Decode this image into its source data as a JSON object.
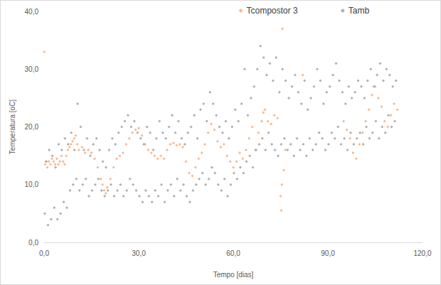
{
  "chart_data": {
    "type": "scatter",
    "x_label": "Tempo [dias]",
    "y_label": "Temperatura [oC]",
    "xlim": [
      0,
      120
    ],
    "ylim": [
      0,
      40
    ],
    "xticks": [
      {
        "value": 0,
        "label": "0,0"
      },
      {
        "value": 30,
        "label": "30,0"
      },
      {
        "value": 60,
        "label": "60,0"
      },
      {
        "value": 90,
        "label": "90,0"
      },
      {
        "value": 120,
        "label": "120,0"
      }
    ],
    "yticks": [
      {
        "value": 0,
        "label": "0,0"
      },
      {
        "value": 10,
        "label": "10,0"
      },
      {
        "value": 20,
        "label": "20,0"
      },
      {
        "value": 30,
        "label": "30,0"
      },
      {
        "value": 40,
        "label": "40,0"
      }
    ],
    "grid": false,
    "legend": "top",
    "marker": "diamond",
    "series": [
      {
        "name": "Tcompostor 3",
        "color": "#f4b183",
        "x": [
          0,
          0.3,
          0.7,
          1,
          1.5,
          2,
          2.5,
          3,
          3.5,
          4,
          4.5,
          5,
          5.5,
          6,
          6.5,
          7,
          7.5,
          8,
          8.5,
          9,
          9.5,
          10,
          10.5,
          11,
          12,
          13,
          14,
          15,
          16,
          17,
          18,
          18.5,
          19,
          19.5,
          20,
          21,
          22,
          23,
          24,
          25,
          26,
          27,
          28,
          29,
          30,
          31,
          32,
          33,
          34,
          35,
          36,
          37,
          38,
          39,
          40,
          41,
          42,
          43,
          44,
          45,
          46,
          47,
          48,
          49,
          50,
          51,
          52,
          53,
          54,
          55,
          56,
          57,
          58,
          59,
          60,
          61,
          62,
          63,
          64,
          65,
          66,
          67,
          68,
          69,
          69.5,
          70,
          71,
          72,
          73,
          74,
          75,
          75.2,
          75.4,
          75.6,
          76,
          76.5,
          82,
          95,
          96,
          97,
          98,
          99,
          100,
          101,
          102,
          103,
          104,
          105,
          106,
          107,
          108,
          109,
          110,
          111,
          112
        ],
        "values": [
          33,
          13.5,
          14,
          13,
          14,
          13.5,
          14.5,
          14,
          13.5,
          14.5,
          13.5,
          14,
          15,
          14,
          13.5,
          15,
          16,
          16.5,
          17,
          17.5,
          18,
          18.5,
          17,
          16,
          16.5,
          15.5,
          16,
          15.5,
          14.5,
          13,
          11,
          10,
          9,
          8.5,
          9.5,
          11,
          13,
          14.5,
          15,
          15.5,
          17,
          18,
          19,
          19.5,
          19.8,
          18.5,
          17,
          16,
          15.5,
          15,
          14.5,
          15,
          14.5,
          16,
          17,
          17.2,
          16.8,
          17,
          16.5,
          14,
          12,
          11.5,
          13,
          14.5,
          15.5,
          17,
          19,
          20.5,
          19.5,
          17.5,
          16.5,
          17,
          15,
          14,
          13,
          14,
          15.5,
          14.5,
          16,
          18,
          20,
          16,
          19,
          21,
          22.5,
          23,
          21,
          20.5,
          22,
          21.5,
          8,
          5.5,
          10,
          37,
          12.5,
          16,
          29,
          21,
          19.5,
          18,
          15.5,
          14.5,
          17,
          19,
          21,
          23,
          25.5,
          27,
          25,
          23.5,
          21,
          20,
          22,
          24,
          23
        ]
      },
      {
        "name": "Tamb",
        "color": "#a5a5a5",
        "x": [
          0.2,
          0.6,
          1.2,
          1.6,
          2.2,
          2.6,
          3.2,
          3.6,
          4.2,
          4.6,
          5.2,
          5.6,
          6.2,
          6.6,
          7.2,
          7.6,
          8.2,
          8.6,
          9.2,
          9.6,
          10.2,
          10.6,
          11.2,
          11.6,
          12.2,
          12.6,
          13.2,
          13.6,
          14.2,
          14.6,
          15.2,
          15.6,
          16.2,
          16.6,
          17.2,
          17.6,
          18.2,
          18.6,
          19.2,
          19.6,
          20.2,
          20.6,
          21.2,
          21.6,
          22.2,
          22.6,
          23.2,
          23.6,
          24.2,
          24.6,
          25.2,
          25.6,
          26.2,
          26.6,
          27.2,
          27.6,
          28.2,
          28.6,
          29.2,
          29.6,
          30.2,
          30.6,
          31.2,
          31.6,
          32.2,
          32.6,
          33.2,
          33.6,
          34.2,
          34.6,
          35.2,
          35.6,
          36.2,
          36.6,
          37.2,
          37.6,
          38.2,
          38.6,
          39.2,
          39.6,
          40.2,
          40.6,
          41.2,
          41.6,
          42.2,
          42.6,
          43.2,
          43.6,
          44.2,
          44.6,
          45.2,
          45.6,
          46.2,
          46.6,
          47.2,
          47.6,
          48.2,
          48.6,
          49.2,
          49.6,
          50.2,
          50.6,
          51.2,
          51.6,
          52.2,
          52.6,
          53.2,
          53.6,
          54.2,
          54.6,
          55.2,
          55.6,
          56.2,
          56.6,
          57.2,
          57.6,
          58.2,
          58.6,
          59.2,
          59.6,
          60.2,
          60.6,
          61.2,
          61.6,
          62.2,
          62.6,
          63.2,
          63.6,
          64.2,
          64.6,
          65.2,
          65.6,
          66.2,
          66.6,
          67.2,
          67.6,
          68.2,
          68.6,
          69.2,
          69.6,
          70.2,
          70.6,
          71.2,
          71.6,
          72.2,
          72.6,
          73.2,
          73.6,
          74.2,
          74.6,
          75.2,
          75.6,
          76.2,
          76.6,
          77.2,
          77.6,
          78.2,
          78.6,
          79.2,
          79.6,
          80.2,
          80.6,
          81.2,
          81.6,
          82.2,
          82.6,
          83.2,
          83.6,
          84.2,
          84.6,
          85.2,
          85.6,
          86.2,
          86.6,
          87.2,
          87.6,
          88.2,
          88.6,
          89.2,
          89.6,
          90.2,
          90.6,
          91.2,
          91.6,
          92.2,
          92.6,
          93.2,
          93.6,
          94.2,
          94.6,
          95.2,
          95.6,
          96.2,
          96.6,
          97.2,
          97.6,
          98.2,
          98.6,
          99.2,
          99.6,
          100.2,
          100.6,
          101.2,
          101.6,
          102.2,
          102.6,
          103.2,
          103.6,
          104.2,
          104.6,
          105.2,
          105.6,
          106.2,
          106.6,
          107.2,
          107.6,
          108.2,
          108.6,
          109.2,
          109.6,
          110.2,
          110.6,
          111.2,
          111.6
        ],
        "values": [
          5,
          14,
          3,
          16,
          4,
          15,
          6,
          13,
          4,
          17,
          5,
          16,
          7,
          18,
          6,
          17,
          9,
          19,
          10,
          16,
          11,
          24,
          9,
          20,
          10,
          16,
          11,
          18,
          8,
          15,
          9,
          17,
          10,
          18,
          11,
          16,
          9,
          14,
          8,
          13,
          9,
          16,
          10,
          18,
          8,
          17,
          9,
          19,
          10,
          20,
          8,
          21,
          9,
          22,
          11,
          20,
          10,
          21,
          9,
          19,
          8,
          18,
          7,
          17,
          9,
          20,
          8,
          19,
          7,
          16,
          9,
          18,
          8,
          21,
          10,
          19,
          7,
          18,
          9,
          20,
          10,
          22,
          8,
          19,
          11,
          21,
          9,
          18,
          10,
          17,
          8,
          19,
          7,
          20,
          9,
          22,
          10,
          18,
          11,
          23,
          12,
          24,
          10,
          21,
          11,
          26,
          13,
          24,
          12,
          22,
          10,
          20,
          9,
          19,
          11,
          21,
          8,
          18,
          10,
          20,
          12,
          23,
          11,
          21,
          13,
          24,
          12,
          30,
          14,
          22,
          15,
          25,
          13,
          27,
          16,
          30,
          17,
          34,
          18,
          32,
          16,
          29,
          19,
          31,
          17,
          28,
          16,
          32,
          15,
          26,
          17,
          30,
          18,
          28,
          16,
          25,
          17,
          27,
          15,
          29,
          18,
          26,
          16,
          24,
          17,
          28,
          15,
          23,
          18,
          25,
          16,
          27,
          17,
          30,
          19,
          28,
          18,
          24,
          16,
          26,
          17,
          27,
          19,
          29,
          18,
          31,
          20,
          28,
          17,
          26,
          18,
          24,
          16,
          27,
          19,
          25,
          17,
          26,
          18,
          28,
          19,
          27,
          17,
          25,
          20,
          28,
          18,
          30,
          19,
          27,
          21,
          29,
          18,
          31,
          20,
          28,
          19,
          30,
          22,
          29,
          20,
          27,
          21,
          28
        ]
      }
    ]
  }
}
